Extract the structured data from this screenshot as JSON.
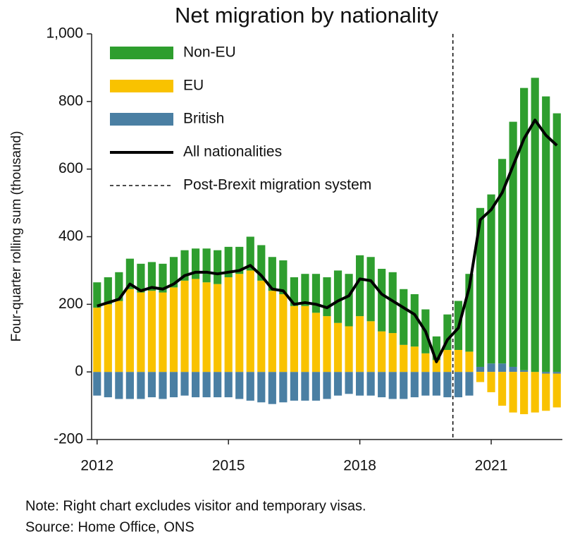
{
  "chart_data": {
    "type": "stacked-bar-line",
    "title": "Net migration by nationality",
    "y_label": "Four-quarter rolling sum (thousand)",
    "categories": [
      "2012",
      null,
      null,
      null,
      null,
      null,
      null,
      null,
      null,
      null,
      null,
      null,
      "2015",
      null,
      null,
      null,
      null,
      null,
      null,
      null,
      null,
      null,
      null,
      null,
      "2018",
      null,
      null,
      null,
      null,
      null,
      null,
      null,
      null,
      null,
      null,
      null,
      "2021",
      null,
      null,
      null,
      null,
      null,
      null
    ],
    "series": [
      {
        "name": "Non-EU",
        "color": "#2e9e2e",
        "values": [
          75,
          80,
          85,
          90,
          85,
          85,
          85,
          90,
          90,
          90,
          100,
          100,
          90,
          80,
          100,
          105,
          100,
          100,
          85,
          95,
          115,
          115,
          155,
          155,
          180,
          190,
          185,
          180,
          165,
          155,
          130,
          70,
          105,
          145,
          230,
          470,
          500,
          605,
          725,
          835,
          870,
          815,
          765
        ]
      },
      {
        "name": "EU",
        "color": "#f9c200",
        "values": [
          190,
          200,
          210,
          245,
          235,
          240,
          235,
          250,
          270,
          275,
          265,
          260,
          280,
          290,
          300,
          270,
          240,
          230,
          195,
          195,
          175,
          165,
          145,
          135,
          165,
          150,
          120,
          115,
          80,
          75,
          55,
          35,
          65,
          65,
          60,
          -30,
          -60,
          -100,
          -120,
          -125,
          -120,
          -110,
          -100
        ]
      },
      {
        "name": "British",
        "color": "#4a7fa3",
        "values": [
          -70,
          -75,
          -80,
          -80,
          -80,
          -75,
          -80,
          -75,
          -70,
          -75,
          -75,
          -75,
          -75,
          -80,
          -85,
          -90,
          -95,
          -90,
          -85,
          -85,
          -85,
          -80,
          -70,
          -65,
          -70,
          -70,
          -75,
          -80,
          -80,
          -75,
          -70,
          -70,
          -75,
          -75,
          -70,
          15,
          25,
          25,
          15,
          5,
          0,
          -5,
          -5
        ]
      }
    ],
    "line": {
      "name": "All nationalities",
      "color": "#000000",
      "values": [
        195,
        205,
        215,
        260,
        240,
        250,
        245,
        260,
        285,
        295,
        295,
        290,
        295,
        300,
        315,
        285,
        245,
        240,
        200,
        205,
        200,
        190,
        210,
        225,
        275,
        270,
        230,
        210,
        190,
        170,
        120,
        30,
        95,
        130,
        250,
        450,
        480,
        530,
        610,
        690,
        745,
        700,
        670
      ]
    },
    "vline": {
      "name": "Post-Brexit migration system"
    },
    "ylim": [
      -200,
      1000
    ],
    "yticks": [
      {
        "value": 1000,
        "label": "1,000"
      },
      800,
      600,
      400,
      200,
      0,
      -200
    ],
    "notes": [
      "Note: Right chart excludes visitor and temporary visas.",
      "Source: Home Office, ONS"
    ]
  }
}
